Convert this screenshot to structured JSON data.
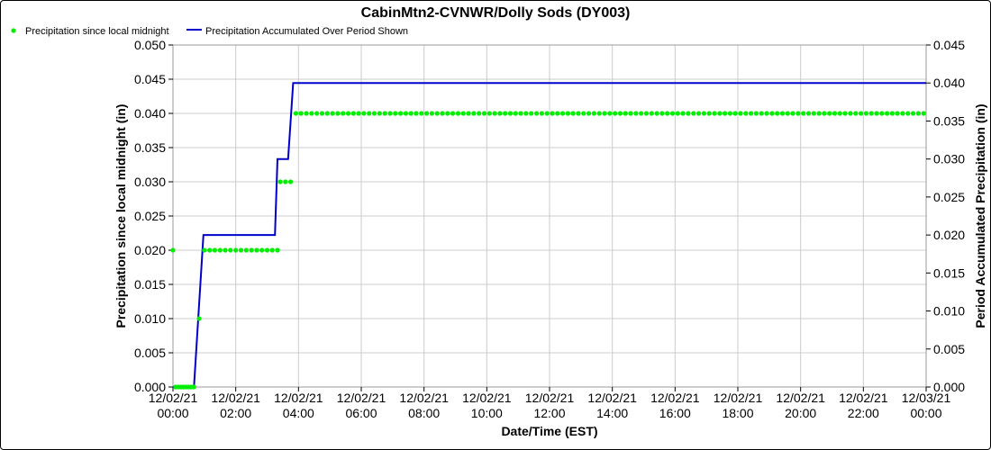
{
  "chart_data": {
    "type": "line",
    "title": "CabinMtn2-CVNWR/Dolly Sods (DY003)",
    "xlabel": "Date/Time (EST)",
    "ylabel_left": "Precipitation since local midnight (in)",
    "ylabel_right": "Period Accumulated Precipitation (in)",
    "grid": true,
    "legend_position": "top-left",
    "x_ticks": [
      {
        "date": "12/02/21",
        "time": "00:00"
      },
      {
        "date": "12/02/21",
        "time": "02:00"
      },
      {
        "date": "12/02/21",
        "time": "04:00"
      },
      {
        "date": "12/02/21",
        "time": "06:00"
      },
      {
        "date": "12/02/21",
        "time": "08:00"
      },
      {
        "date": "12/02/21",
        "time": "10:00"
      },
      {
        "date": "12/02/21",
        "time": "12:00"
      },
      {
        "date": "12/02/21",
        "time": "14:00"
      },
      {
        "date": "12/02/21",
        "time": "16:00"
      },
      {
        "date": "12/02/21",
        "time": "18:00"
      },
      {
        "date": "12/02/21",
        "time": "20:00"
      },
      {
        "date": "12/02/21",
        "time": "22:00"
      },
      {
        "date": "12/03/21",
        "time": "00:00"
      }
    ],
    "xlim_hours": [
      0,
      24
    ],
    "y_left": {
      "lim": [
        0,
        0.05
      ],
      "ticks": [
        "0.000",
        "0.005",
        "0.010",
        "0.015",
        "0.020",
        "0.025",
        "0.030",
        "0.035",
        "0.040",
        "0.045",
        "0.050"
      ]
    },
    "y_right": {
      "lim": [
        0,
        0.045
      ],
      "ticks": [
        "0.000",
        "0.005",
        "0.010",
        "0.015",
        "0.020",
        "0.025",
        "0.030",
        "0.035",
        "0.040",
        "0.045"
      ]
    },
    "series": [
      {
        "name": "Precipitation since local midnight",
        "color": "#00ee00",
        "marker": "dot",
        "axis": "left",
        "points": [
          [
            0.0,
            0.02
          ],
          [
            0.083,
            0.0
          ],
          [
            0.167,
            0.0
          ],
          [
            0.25,
            0.0
          ],
          [
            0.333,
            0.0
          ],
          [
            0.417,
            0.0
          ],
          [
            0.5,
            0.0
          ],
          [
            0.583,
            0.0
          ],
          [
            0.667,
            0.0
          ],
          [
            0.833,
            0.01
          ],
          [
            1.0,
            0.02
          ],
          [
            1.167,
            0.02
          ],
          [
            1.333,
            0.02
          ],
          [
            1.5,
            0.02
          ],
          [
            1.667,
            0.02
          ],
          [
            1.833,
            0.02
          ],
          [
            2.0,
            0.02
          ],
          [
            2.167,
            0.02
          ],
          [
            2.333,
            0.02
          ],
          [
            2.5,
            0.02
          ],
          [
            2.667,
            0.02
          ],
          [
            2.833,
            0.02
          ],
          [
            3.0,
            0.02
          ],
          [
            3.167,
            0.02
          ],
          [
            3.333,
            0.02
          ],
          [
            3.417,
            0.03
          ],
          [
            3.583,
            0.03
          ],
          [
            3.75,
            0.03
          ],
          [
            3.917,
            0.04
          ]
        ],
        "fill": {
          "from_hours": 3.917,
          "to_hours": 24.0,
          "step_hours": 0.1667,
          "value": 0.04
        }
      },
      {
        "name": "Precipitation Accumulated Over Period Shown",
        "color": "#0000cc",
        "marker": "line",
        "axis": "right",
        "points": [
          [
            0.0,
            0.0
          ],
          [
            0.67,
            0.0
          ],
          [
            0.97,
            0.02
          ],
          [
            3.25,
            0.02
          ],
          [
            3.33,
            0.03
          ],
          [
            3.67,
            0.03
          ],
          [
            3.83,
            0.04
          ],
          [
            24.0,
            0.04
          ]
        ]
      }
    ]
  }
}
